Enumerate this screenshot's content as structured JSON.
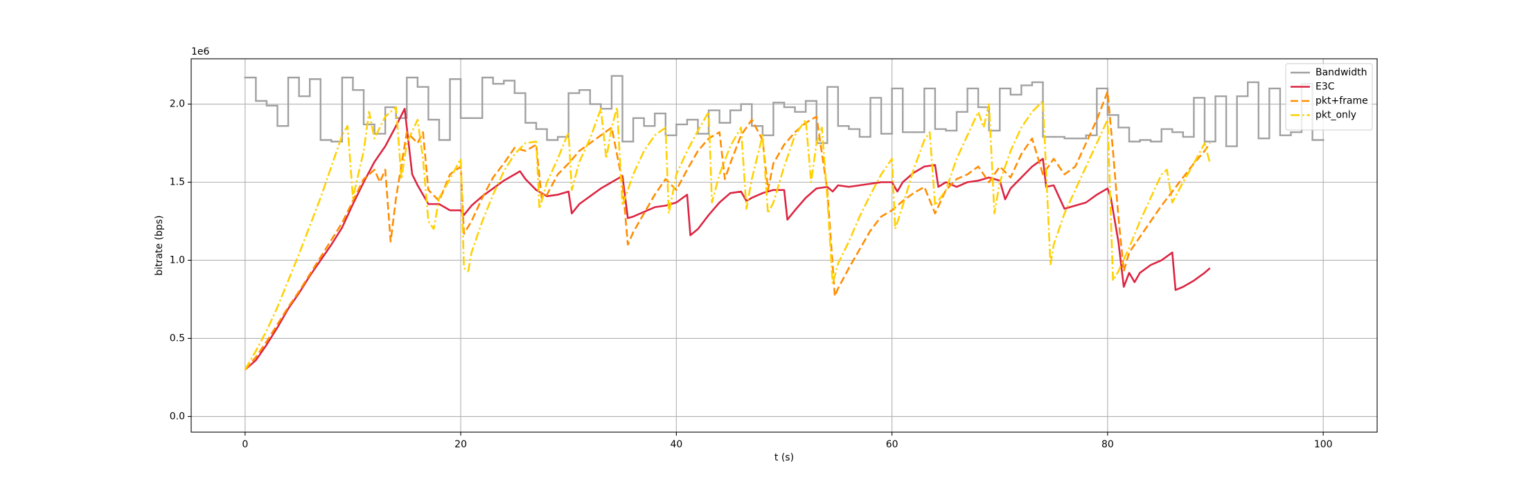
{
  "chart_data": {
    "type": "line",
    "x_label": "t (s)",
    "y_label": "bitrate (bps)",
    "y_offset_label": "1e6",
    "xlim": [
      -5,
      105
    ],
    "ylim": [
      -100000,
      2290000
    ],
    "xticks": [
      0,
      20,
      40,
      60,
      80,
      100
    ],
    "yticks": [
      {
        "value": 0,
        "label": "0.0"
      },
      {
        "value": 500000,
        "label": "0.5"
      },
      {
        "value": 1000000,
        "label": "1.0"
      },
      {
        "value": 1500000,
        "label": "1.5"
      },
      {
        "value": 2000000,
        "label": "2.0"
      }
    ],
    "grid": true,
    "legend": "upper right",
    "series": [
      {
        "name": "Bandwidth",
        "color": "#a0a0a0",
        "dash": "solid",
        "drawstyle": "steps-post",
        "x": [
          0,
          1,
          2,
          3,
          4,
          5,
          6,
          7,
          8,
          9,
          10,
          11,
          12,
          13,
          14,
          15,
          16,
          17,
          18,
          19,
          20,
          21,
          22,
          23,
          24,
          25,
          26,
          27,
          28,
          29,
          30,
          31,
          32,
          33,
          34,
          35,
          36,
          37,
          38,
          39,
          40,
          41,
          42,
          43,
          44,
          45,
          46,
          47,
          48,
          49,
          50,
          51,
          52,
          53,
          54,
          55,
          56,
          57,
          58,
          59,
          60,
          61,
          62,
          63,
          64,
          65,
          66,
          67,
          68,
          69,
          70,
          71,
          72,
          73,
          74,
          75,
          76,
          77,
          78,
          79,
          80,
          81,
          82,
          83,
          84,
          85,
          86,
          87,
          88,
          89,
          90,
          91,
          92,
          93,
          94,
          95,
          96,
          97,
          98,
          99,
          100
        ],
        "values": [
          2170000,
          2020000,
          1990000,
          1860000,
          2170000,
          2050000,
          2160000,
          1770000,
          1760000,
          2170000,
          2090000,
          1870000,
          1810000,
          1980000,
          1910000,
          2170000,
          2110000,
          1900000,
          1770000,
          2160000,
          1910000,
          1910000,
          2170000,
          2130000,
          2150000,
          2070000,
          1880000,
          1840000,
          1770000,
          1790000,
          2070000,
          2090000,
          2000000,
          1970000,
          2180000,
          1760000,
          1910000,
          1860000,
          1940000,
          1800000,
          1870000,
          1900000,
          1810000,
          1960000,
          1880000,
          1960000,
          2000000,
          1860000,
          1800000,
          2010000,
          1980000,
          1950000,
          2020000,
          1750000,
          2110000,
          1860000,
          1840000,
          1790000,
          2040000,
          1810000,
          2100000,
          1820000,
          1820000,
          2100000,
          1840000,
          1830000,
          1950000,
          2100000,
          1980000,
          1830000,
          2100000,
          2060000,
          2120000,
          2140000,
          1790000,
          1790000,
          1780000,
          1780000,
          1800000,
          2100000,
          1930000,
          1850000,
          1760000,
          1770000,
          1760000,
          1840000,
          1820000,
          1790000,
          2040000,
          1760000,
          2050000,
          1730000,
          2050000,
          2140000,
          1780000,
          2100000,
          1800000,
          1820000,
          2130000,
          1770000,
          1770000
        ]
      },
      {
        "name": "E3C",
        "color": "#dc2340",
        "dash": "solid",
        "x": [
          0,
          1,
          2,
          3,
          4,
          5,
          6,
          7,
          8,
          9,
          10,
          11,
          12,
          13,
          14,
          14.8,
          15.5,
          16,
          17,
          18,
          19,
          20,
          20.3,
          21,
          22,
          23,
          24,
          25,
          25.5,
          26,
          27,
          28,
          29,
          30,
          30.3,
          31,
          32,
          33,
          34,
          35,
          35.5,
          36,
          37,
          38,
          39,
          40,
          41,
          41.3,
          42,
          43,
          44,
          45,
          46,
          46.5,
          47,
          48,
          49,
          50,
          50.3,
          51,
          52,
          53,
          54,
          54.5,
          55,
          56,
          57,
          58,
          59,
          60,
          60.5,
          61,
          62,
          63,
          64,
          64.3,
          65,
          66,
          67,
          68,
          69,
          70,
          70.5,
          71,
          72,
          73,
          74,
          74.3,
          75,
          76,
          77,
          78,
          79,
          80,
          80.3,
          81,
          81.5,
          82,
          82.5,
          83,
          84,
          85,
          86,
          86.3,
          87,
          88,
          89,
          89.5
        ],
        "values": [
          300000,
          360000,
          460000,
          570000,
          690000,
          790000,
          900000,
          1000000,
          1100000,
          1210000,
          1360000,
          1500000,
          1630000,
          1730000,
          1860000,
          1970000,
          1550000,
          1480000,
          1360000,
          1360000,
          1320000,
          1320000,
          1290000,
          1350000,
          1410000,
          1460000,
          1510000,
          1550000,
          1570000,
          1520000,
          1450000,
          1410000,
          1420000,
          1440000,
          1300000,
          1360000,
          1410000,
          1460000,
          1500000,
          1540000,
          1270000,
          1280000,
          1310000,
          1340000,
          1350000,
          1370000,
          1420000,
          1160000,
          1200000,
          1290000,
          1370000,
          1430000,
          1440000,
          1380000,
          1400000,
          1430000,
          1450000,
          1450000,
          1260000,
          1320000,
          1400000,
          1460000,
          1470000,
          1440000,
          1480000,
          1470000,
          1480000,
          1490000,
          1500000,
          1500000,
          1440000,
          1500000,
          1560000,
          1600000,
          1610000,
          1470000,
          1500000,
          1470000,
          1500000,
          1510000,
          1530000,
          1510000,
          1390000,
          1460000,
          1530000,
          1600000,
          1650000,
          1470000,
          1480000,
          1330000,
          1350000,
          1370000,
          1420000,
          1460000,
          1400000,
          1120000,
          830000,
          920000,
          860000,
          920000,
          970000,
          1000000,
          1050000,
          810000,
          830000,
          870000,
          920000,
          950000
        ]
      },
      {
        "name": "pkt+frame",
        "color": "#ff8c00",
        "dash": "dashed",
        "x": [
          0,
          1,
          2,
          3,
          4,
          5,
          6,
          7,
          8,
          9,
          10,
          11,
          12,
          12.5,
          13,
          13.5,
          14,
          15,
          16,
          16.5,
          17,
          18,
          19,
          20,
          20.3,
          21,
          22,
          23,
          24,
          25,
          26,
          27,
          27.5,
          28,
          29,
          30,
          31,
          32,
          33,
          34,
          35,
          35.5,
          36,
          37,
          38,
          39,
          40,
          41,
          42,
          43,
          44,
          44.5,
          45,
          46,
          47,
          48,
          48.5,
          49,
          50,
          51,
          52,
          53,
          54,
          54.7,
          55,
          56,
          57,
          58,
          59,
          60,
          61,
          62,
          63,
          64,
          65,
          66,
          67,
          68,
          69,
          70,
          71,
          72,
          73,
          74,
          75,
          76,
          77,
          78,
          79,
          80,
          80.5,
          81,
          81.5,
          82,
          83,
          84,
          85,
          86,
          87,
          88,
          89,
          89.5
        ],
        "values": [
          300000,
          380000,
          480000,
          590000,
          700000,
          800000,
          910000,
          1020000,
          1130000,
          1240000,
          1380000,
          1520000,
          1580000,
          1500000,
          1580000,
          1120000,
          1400000,
          1820000,
          1750000,
          1820000,
          1450000,
          1380000,
          1550000,
          1600000,
          1170000,
          1250000,
          1400000,
          1530000,
          1620000,
          1720000,
          1700000,
          1740000,
          1400000,
          1420000,
          1550000,
          1620000,
          1700000,
          1750000,
          1800000,
          1850000,
          1500000,
          1100000,
          1180000,
          1300000,
          1420000,
          1520000,
          1450000,
          1580000,
          1700000,
          1780000,
          1820000,
          1520000,
          1620000,
          1800000,
          1900000,
          1770000,
          1450000,
          1620000,
          1740000,
          1820000,
          1880000,
          1920000,
          1450000,
          770000,
          820000,
          950000,
          1070000,
          1190000,
          1280000,
          1320000,
          1380000,
          1430000,
          1470000,
          1300000,
          1450000,
          1520000,
          1550000,
          1600000,
          1500000,
          1600000,
          1530000,
          1680000,
          1780000,
          1550000,
          1650000,
          1550000,
          1600000,
          1750000,
          1900000,
          2080000,
          1700000,
          1280000,
          930000,
          1050000,
          1150000,
          1250000,
          1350000,
          1440000,
          1530000,
          1620000,
          1700000,
          1750000
        ]
      },
      {
        "name": "pkt_only",
        "color": "#ffd000",
        "dash": "dashdot",
        "x": [
          0,
          1,
          2,
          3,
          4,
          5,
          6,
          7,
          8,
          9,
          9.5,
          10,
          11,
          11.5,
          12,
          13,
          14,
          14.5,
          15,
          16,
          16.5,
          17,
          17.5,
          18,
          19,
          20,
          20.3,
          20.7,
          21,
          22,
          23,
          24,
          25,
          26,
          27,
          27.3,
          28,
          29,
          30,
          30.3,
          31,
          32,
          33,
          33.5,
          34,
          34.5,
          35,
          36,
          37,
          38,
          39,
          39.3,
          40,
          41,
          42,
          43,
          43.3,
          44,
          45,
          46,
          46.5,
          47,
          48,
          48.5,
          49,
          50,
          51,
          52,
          52.5,
          53,
          53.5,
          54,
          54.5,
          55,
          56,
          57,
          58,
          59,
          60,
          60.3,
          61,
          62,
          63,
          63.5,
          64,
          65,
          66,
          67,
          68,
          68.5,
          69,
          69.5,
          70,
          71,
          72,
          73,
          74,
          74.7,
          75,
          76,
          77,
          78,
          79,
          80,
          80.5,
          81,
          82,
          83,
          84,
          85,
          85.5,
          86,
          87,
          88,
          89,
          89.5
        ],
        "values": [
          300000,
          420000,
          550000,
          700000,
          870000,
          1040000,
          1220000,
          1400000,
          1600000,
          1800000,
          1860000,
          1400000,
          1700000,
          1950000,
          1780000,
          1920000,
          1980000,
          1520000,
          1750000,
          1900000,
          1650000,
          1250000,
          1200000,
          1400000,
          1520000,
          1650000,
          950000,
          930000,
          1050000,
          1250000,
          1420000,
          1570000,
          1680000,
          1750000,
          1760000,
          1330000,
          1500000,
          1650000,
          1820000,
          1450000,
          1630000,
          1780000,
          1970000,
          1650000,
          1850000,
          1980000,
          1350000,
          1550000,
          1700000,
          1800000,
          1850000,
          1300000,
          1550000,
          1700000,
          1830000,
          1950000,
          1370000,
          1550000,
          1730000,
          1850000,
          1330000,
          1520000,
          1800000,
          1300000,
          1370000,
          1600000,
          1800000,
          1900000,
          1500000,
          1750000,
          1850000,
          1400000,
          850000,
          980000,
          1120000,
          1280000,
          1420000,
          1550000,
          1650000,
          1200000,
          1350000,
          1580000,
          1770000,
          1820000,
          1350000,
          1450000,
          1650000,
          1800000,
          1950000,
          1850000,
          2000000,
          1300000,
          1500000,
          1700000,
          1850000,
          1950000,
          2020000,
          970000,
          1100000,
          1300000,
          1450000,
          1600000,
          1750000,
          1900000,
          870000,
          930000,
          1080000,
          1250000,
          1400000,
          1550000,
          1580000,
          1370000,
          1500000,
          1620000,
          1750000,
          1620000
        ]
      }
    ]
  }
}
